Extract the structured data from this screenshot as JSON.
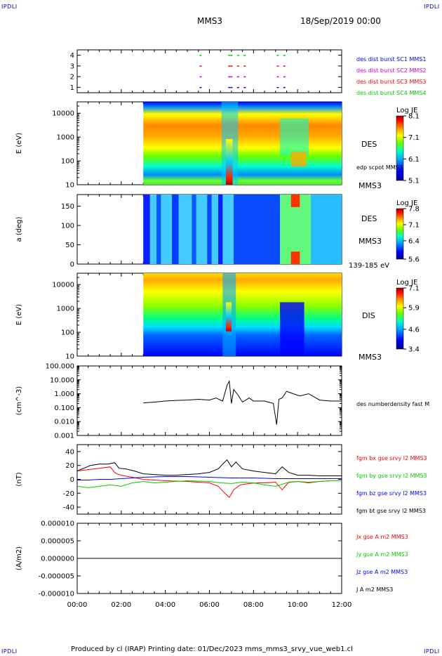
{
  "corners": {
    "tl": "IPDLI",
    "tr": "IPDLI",
    "bl": "IPDLI",
    "br": "IPDLI"
  },
  "header": {
    "title": "MMS3",
    "date": "18/Sep/2019 00:00"
  },
  "footer": {
    "text": "Produced by cl (IRAP)   Printing date: 01/Dec/2023   mms_mms3_srvy_vue_web1.cl"
  },
  "time_axis": {
    "ticks": [
      "00:00",
      "02:00",
      "04:00",
      "06:00",
      "08:00",
      "10:00",
      "12:00"
    ],
    "range_hours": [
      0,
      12
    ]
  },
  "colors": {
    "mms1": "#0000ff",
    "mms2": "#cc00cc",
    "mms3": "#ff0000",
    "mms4": "#00cc00",
    "black": "#000000"
  },
  "chart_data": [
    {
      "type": "scatter",
      "id": "burst",
      "ylim": [
        0.5,
        4.5
      ],
      "yticks": [
        "1",
        "2",
        "3",
        "4"
      ],
      "legend": [
        "des dist burst SC1 MMS1",
        "des dist burst SC2 MMS2",
        "des dist burst SC3 MMS3",
        "des dist burst SC4 MMS4"
      ],
      "series": [
        {
          "level": 4,
          "color": "mms4",
          "x": [
            5.6,
            6.9,
            7.0,
            7.3,
            7.6,
            9.1,
            9.4
          ]
        },
        {
          "level": 3,
          "color": "mms3",
          "x": [
            5.6,
            6.9,
            7.0,
            7.3,
            7.6,
            9.1,
            9.4
          ]
        },
        {
          "level": 2,
          "color": "mms2",
          "x": [
            5.6,
            6.9,
            7.0,
            7.3,
            7.6,
            9.1,
            9.4
          ]
        },
        {
          "level": 1,
          "color": "mms1",
          "x": [
            5.6,
            6.9,
            7.0,
            7.3,
            7.6,
            9.1,
            9.4
          ]
        }
      ]
    },
    {
      "type": "heatmap",
      "id": "des_energy",
      "ylabel": "E (eV)",
      "yscale": "log",
      "ylim": [
        10,
        30000
      ],
      "yticks": [
        "10",
        "100",
        "1000",
        "10000"
      ],
      "label": "DES",
      "label2": "edp scpot MMS3",
      "sublabel": "MMS3",
      "colorbar": {
        "title": "Log JE",
        "ticks": [
          "8.1",
          "7.1",
          "6.1",
          "5.1"
        ],
        "range": [
          5.1,
          8.1
        ]
      }
    },
    {
      "type": "heatmap",
      "id": "des_pitch",
      "ylabel": "a (deg)",
      "ylim": [
        0,
        180
      ],
      "yticks": [
        "0",
        "50",
        "100",
        "150"
      ],
      "label": "DES",
      "sublabel": "MMS3",
      "energy_range": "139-185 eV",
      "colorbar": {
        "title": "Log JE",
        "ticks": [
          "7.8",
          "7.1",
          "6.4",
          "5.6"
        ],
        "range": [
          5.6,
          7.8
        ]
      }
    },
    {
      "type": "heatmap",
      "id": "dis_energy",
      "ylabel": "E (eV)",
      "yscale": "log",
      "ylim": [
        10,
        30000
      ],
      "yticks": [
        "10",
        "100",
        "1000",
        "10000"
      ],
      "label": "DIS",
      "sublabel": "MMS3",
      "colorbar": {
        "title": "Log JE",
        "ticks": [
          "7.1",
          "5.9",
          "4.6",
          "3.4"
        ],
        "range": [
          3.4,
          7.1
        ]
      }
    },
    {
      "type": "line",
      "id": "density",
      "ylabel": "(cm^-3)",
      "yscale": "log",
      "ylim": [
        0.001,
        100
      ],
      "yticks": [
        "0.001",
        "0.010",
        "0.100",
        "1.000",
        "10.000",
        "100.000"
      ],
      "legend": [
        "des numberdensity fast M"
      ],
      "series": [
        {
          "color": "black",
          "x": [
            3.0,
            3.5,
            4.0,
            4.5,
            5.0,
            5.5,
            6.0,
            6.3,
            6.6,
            6.8,
            6.9,
            7.0,
            7.1,
            7.3,
            7.5,
            7.8,
            8.0,
            8.5,
            8.9,
            9.05,
            9.15,
            9.3,
            9.5,
            9.8,
            10.1,
            10.5,
            11.0,
            11.5,
            12.0
          ],
          "values": [
            0.22,
            0.25,
            0.3,
            0.33,
            0.35,
            0.4,
            0.35,
            0.5,
            0.3,
            4.0,
            8.0,
            0.2,
            2.0,
            0.8,
            0.25,
            0.5,
            0.3,
            0.3,
            0.2,
            0.006,
            0.4,
            0.5,
            1.5,
            1.0,
            0.7,
            1.0,
            0.35,
            0.3,
            0.3
          ]
        }
      ]
    },
    {
      "type": "line",
      "id": "fgm",
      "ylabel": "(nT)",
      "ylim": [
        -50,
        50
      ],
      "yticks": [
        "-40",
        "-20",
        "0",
        "20",
        "40"
      ],
      "legend": [
        "fgm bx gse srvy l2 MMS3",
        "fgm by gse srvy l2 MMS3",
        "fgm bz gse srvy l2 MMS3",
        "fgm bt gse srvy l2 MMS3"
      ],
      "series": [
        {
          "color": "mms3",
          "x": [
            0,
            0.5,
            1.0,
            1.5,
            1.7,
            1.8,
            2.0,
            2.5,
            3.0,
            4.0,
            5.0,
            6.0,
            6.4,
            6.7,
            6.9,
            7.1,
            7.4,
            7.8,
            8.2,
            8.6,
            9.0,
            9.3,
            9.6,
            10.0,
            10.5,
            11.0,
            11.5,
            12.0
          ],
          "values": [
            12,
            14,
            16,
            18,
            10,
            8,
            6,
            3,
            0,
            -2,
            -3,
            -5,
            -10,
            -20,
            -26,
            -15,
            -8,
            -6,
            -5,
            -5,
            -4,
            -15,
            -4,
            -3,
            -5,
            -3,
            -2,
            -2
          ]
        },
        {
          "color": "mms4",
          "x": [
            0,
            0.5,
            1.0,
            1.5,
            2.0,
            2.5,
            3.0,
            3.5,
            4.0,
            5.0,
            6.0,
            6.5,
            7.0,
            7.5,
            8.0,
            8.5,
            9.0,
            9.5,
            10.0,
            10.5,
            11.0,
            11.5,
            12.0
          ],
          "values": [
            -10,
            -12,
            -10,
            -8,
            -10,
            -5,
            -3,
            -5,
            -4,
            -2,
            -3,
            -5,
            -6,
            -4,
            -5,
            -8,
            -10,
            -5,
            -3,
            -4,
            -3,
            -2,
            -2
          ]
        },
        {
          "color": "mms1",
          "x": [
            0,
            0.5,
            1.0,
            1.5,
            2.0,
            2.5,
            3.0,
            4.0,
            5.0,
            6.0,
            7.0,
            8.0,
            9.0,
            10.0,
            11.0,
            12.0
          ],
          "values": [
            -1,
            -1,
            0,
            0,
            1,
            2,
            3,
            4,
            4,
            3,
            2,
            2,
            1,
            1,
            1,
            1
          ]
        },
        {
          "color": "black",
          "x": [
            0,
            0.3,
            0.6,
            1.0,
            1.4,
            1.7,
            1.9,
            2.2,
            2.6,
            3.0,
            3.5,
            4.0,
            4.5,
            5.0,
            5.5,
            6.0,
            6.4,
            6.6,
            6.8,
            7.0,
            7.2,
            7.5,
            8.0,
            8.5,
            9.0,
            9.3,
            9.6,
            10.0,
            10.5,
            11.0,
            11.5,
            12.0
          ],
          "values": [
            12,
            16,
            20,
            22,
            22,
            24,
            16,
            15,
            12,
            8,
            7,
            6,
            6,
            7,
            8,
            10,
            15,
            22,
            28,
            18,
            25,
            15,
            12,
            10,
            8,
            18,
            10,
            6,
            6,
            5,
            5,
            5
          ]
        }
      ]
    },
    {
      "type": "line",
      "id": "current",
      "ylabel": "(A/m2)",
      "ylim": [
        -1e-05,
        1e-05
      ],
      "yticks": [
        "-0.000010",
        "-0.000005",
        "0.000000",
        "0.000005",
        "0.000010"
      ],
      "legend": [
        "Jx gse A m2 MMS3",
        "Jy gse A m2 MMS3",
        "Jz gse A m2 MMS3",
        "J A m2 MMS3"
      ],
      "series": [
        {
          "color": "black",
          "x": [
            0,
            12
          ],
          "values": [
            0,
            0
          ]
        }
      ]
    }
  ]
}
